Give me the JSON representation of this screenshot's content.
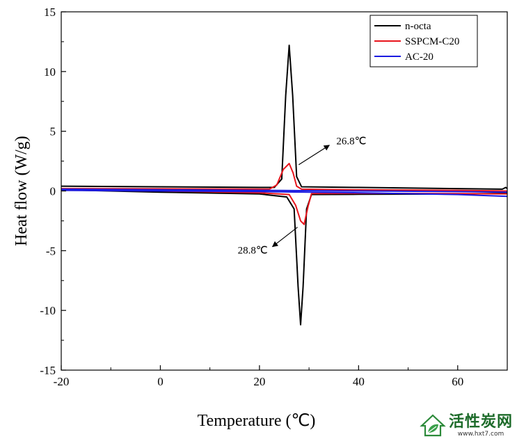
{
  "chart_data": {
    "type": "line",
    "title": "",
    "xlabel": "Temperature (℃)",
    "ylabel": "Heat flow (W/g)",
    "xlim": [
      -20,
      70
    ],
    "ylim": [
      -15,
      15
    ],
    "x_ticks": [
      -20,
      0,
      20,
      40,
      60
    ],
    "y_ticks": [
      -15,
      -10,
      -5,
      0,
      5,
      10,
      15
    ],
    "grid": false,
    "legend_position": "top-right",
    "series": [
      {
        "name": "n-octa",
        "color": "#000000",
        "segments": [
          [
            [
              -20,
              0.4
            ],
            [
              0,
              0.35
            ],
            [
              20,
              0.3
            ],
            [
              23,
              0.3
            ],
            [
              24.5,
              1.0
            ],
            [
              25.3,
              8.0
            ],
            [
              26,
              12.2
            ],
            [
              26.7,
              8.0
            ],
            [
              27.5,
              1.2
            ],
            [
              28.5,
              0.35
            ],
            [
              40,
              0.3
            ],
            [
              60,
              0.2
            ],
            [
              69,
              0.15
            ],
            [
              69.7,
              0.3
            ],
            [
              70,
              0.2
            ]
          ],
          [
            [
              70,
              -0.2
            ],
            [
              60,
              -0.25
            ],
            [
              40,
              -0.28
            ],
            [
              30.5,
              -0.3
            ],
            [
              29.5,
              -1.5
            ],
            [
              28.8,
              -8.0
            ],
            [
              28.3,
              -11.2
            ],
            [
              27.8,
              -8.0
            ],
            [
              27,
              -1.5
            ],
            [
              25.5,
              -0.5
            ],
            [
              20,
              -0.25
            ],
            [
              0,
              -0.1
            ],
            [
              -20,
              0.1
            ]
          ]
        ]
      },
      {
        "name": "SSPCM-C20",
        "color": "#e8141c",
        "segments": [
          [
            [
              -20,
              0.2
            ],
            [
              0,
              0.18
            ],
            [
              22,
              0.15
            ],
            [
              23.5,
              0.5
            ],
            [
              24.8,
              1.8
            ],
            [
              26,
              2.3
            ],
            [
              26.8,
              1.5
            ],
            [
              27.5,
              0.4
            ],
            [
              28.5,
              0.15
            ],
            [
              40,
              0.1
            ],
            [
              60,
              0.05
            ],
            [
              70,
              0.0
            ]
          ],
          [
            [
              70,
              -0.25
            ],
            [
              60,
              -0.22
            ],
            [
              40,
              -0.2
            ],
            [
              30.5,
              -0.22
            ],
            [
              29.8,
              -1.3
            ],
            [
              29,
              -2.8
            ],
            [
              28.3,
              -2.5
            ],
            [
              27.3,
              -1.2
            ],
            [
              26,
              -0.3
            ],
            [
              20,
              -0.15
            ],
            [
              0,
              0.0
            ],
            [
              -20,
              0.1
            ]
          ]
        ]
      },
      {
        "name": "AC-20",
        "color": "#1a1ae0",
        "segments": [
          [
            [
              -20,
              0.15
            ],
            [
              0,
              0.1
            ],
            [
              20,
              0.05
            ],
            [
              40,
              0.0
            ],
            [
              60,
              -0.05
            ],
            [
              70,
              -0.1
            ]
          ],
          [
            [
              70,
              -0.45
            ],
            [
              60,
              -0.3
            ],
            [
              40,
              -0.15
            ],
            [
              20,
              -0.05
            ],
            [
              0,
              0.0
            ],
            [
              -20,
              0.05
            ]
          ]
        ]
      }
    ],
    "annotations": [
      {
        "text": "26.8℃",
        "x": 26.8,
        "y": 2.2
      },
      {
        "text": "28.8℃",
        "x": 28.8,
        "y": -2.8
      }
    ]
  },
  "watermark": {
    "title": "活性炭网",
    "url": "www.hxt7.com"
  }
}
